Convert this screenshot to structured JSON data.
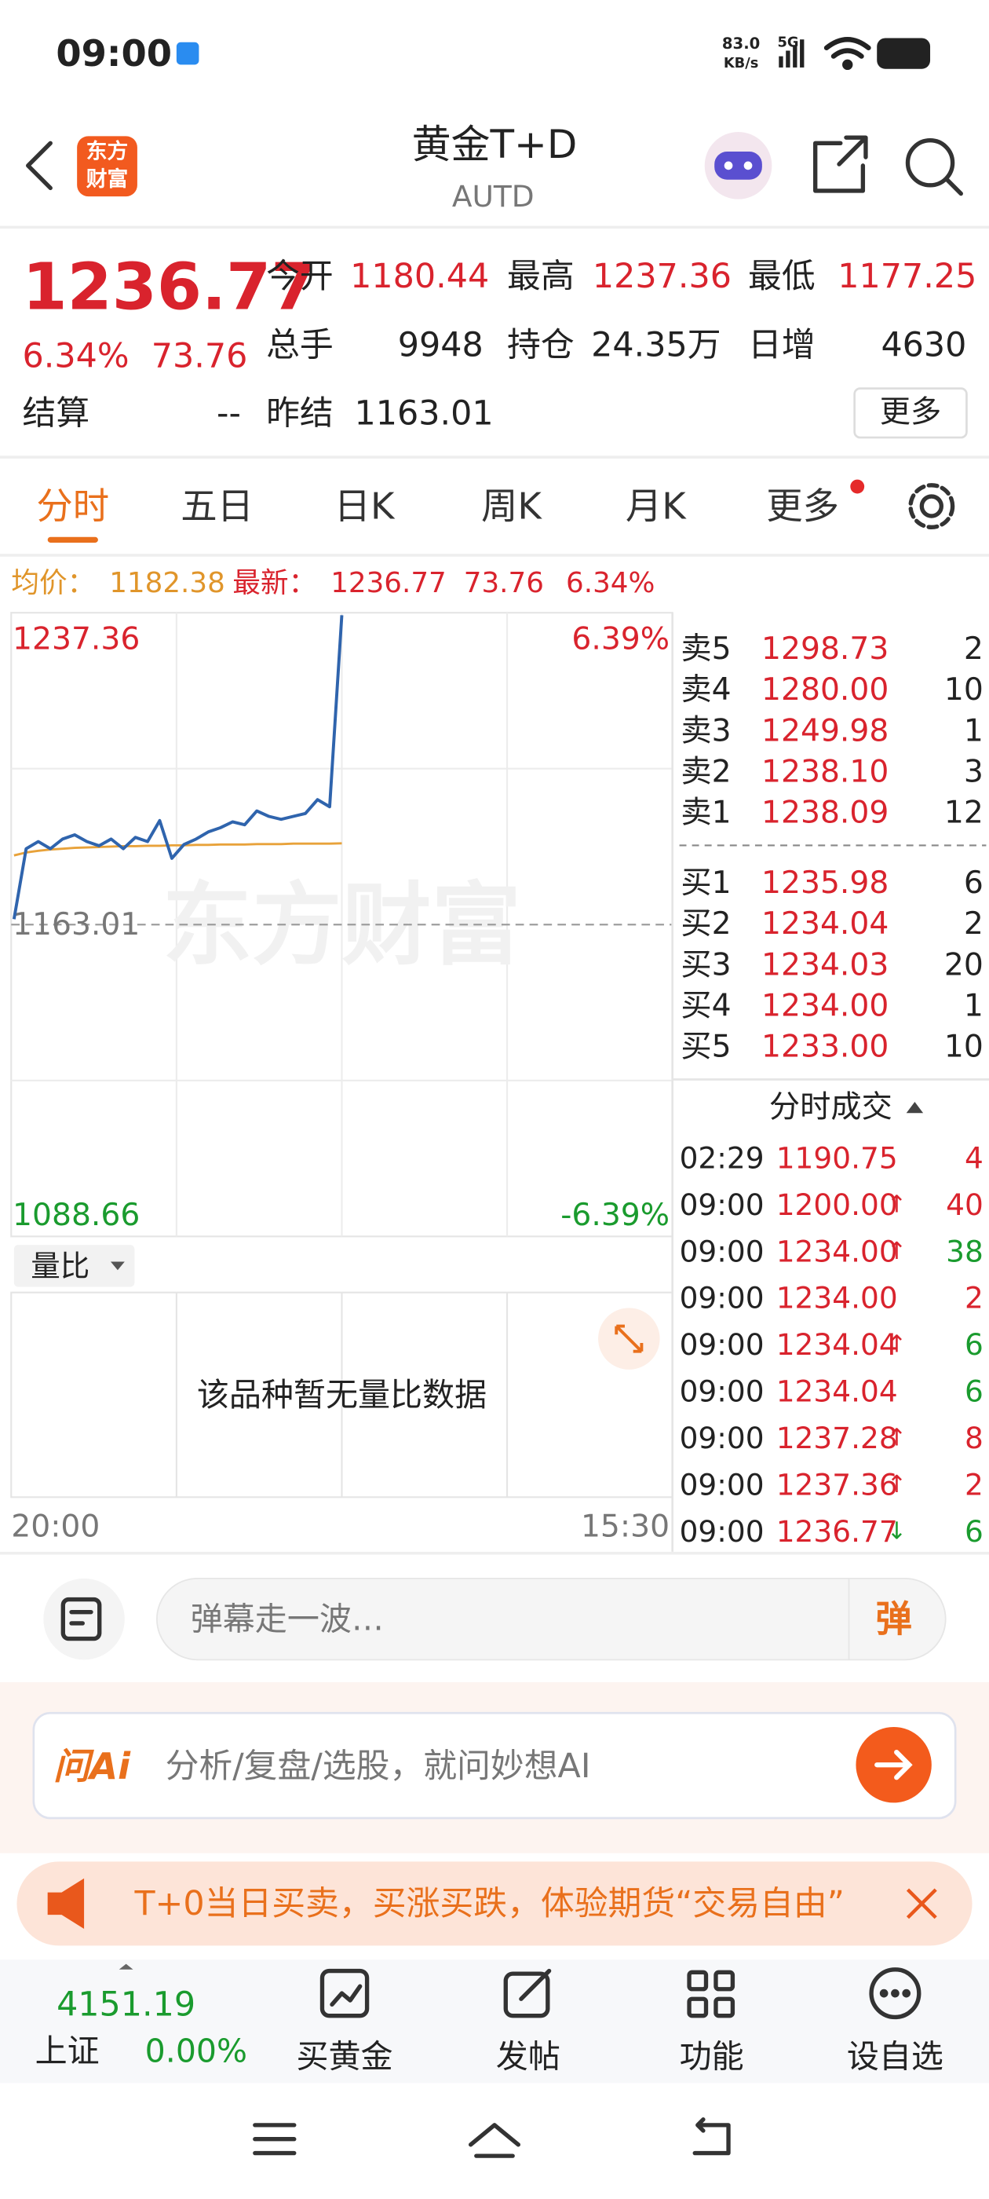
{
  "status_bar": {
    "time": "09:00",
    "net_speed": "83.0",
    "net_unit": "KB/s",
    "network": "5G"
  },
  "header": {
    "logo": [
      "东方",
      "财富"
    ],
    "title": "黄金T+D",
    "code": "AUTD"
  },
  "quote": {
    "price": "1236.77",
    "change_pct": "6.34%",
    "change": "73.76",
    "fields": [
      {
        "label": "今开",
        "value": "1180.44"
      },
      {
        "label": "最高",
        "value": "1237.36"
      },
      {
        "label": "最低",
        "value": "1177.25"
      },
      {
        "label": "总手",
        "value": "9948"
      },
      {
        "label": "持仓",
        "value": "24.35万"
      },
      {
        "label": "日增",
        "value": "4630"
      },
      {
        "label": "结算",
        "value": "--"
      },
      {
        "label": "昨结",
        "value": "1163.01"
      }
    ],
    "more": "更多"
  },
  "tabs": [
    "分时",
    "五日",
    "日K",
    "周K",
    "月K",
    "更多"
  ],
  "info": {
    "avg_label": "均价：",
    "avg": "1182.38",
    "latest_label": "最新：",
    "latest": "1236.77",
    "change": "73.76",
    "change_pct": "6.34%"
  },
  "chart_data": {
    "type": "line",
    "watermark": "东方财富",
    "series": [
      {
        "color": "#2f64ad",
        "values": [
          1164.3,
          1181.1,
          1182.8,
          1181.1,
          1183.4,
          1184.4,
          1182.8,
          1181.8,
          1183.4,
          1181.1,
          1183.8,
          1182.8,
          1187.8,
          1178.8,
          1182.1,
          1183.4,
          1185.1,
          1186.1,
          1187.5,
          1186.8,
          1190.1,
          1188.8,
          1188.1,
          1188.8,
          1189.5,
          1192.8,
          1191.1,
          1236.77
        ]
      },
      {
        "color": "#e8a23a",
        "values": [
          1179.5,
          1180.2,
          1180.6,
          1180.9,
          1181.1,
          1181.3,
          1181.4,
          1181.5,
          1181.6,
          1181.7,
          1181.7,
          1181.8,
          1181.8,
          1181.9,
          1181.9,
          1182.0,
          1182.0,
          1182.1,
          1182.1,
          1182.1,
          1182.2,
          1182.2,
          1182.2,
          1182.3,
          1182.3,
          1182.3,
          1182.3,
          1182.38
        ]
      }
    ],
    "ylim": [
      1088.66,
      1237.36
    ],
    "yticks": [
      1237.36,
      1163.01,
      1088.66
    ],
    "y2lim": [
      -6.39,
      6.39
    ],
    "y2ticks": [
      {
        "value": 6.39,
        "label": "6.39%"
      },
      {
        "value": -6.39,
        "label": "-6.39%"
      }
    ],
    "x_labels": [
      "20:00",
      "15:30"
    ]
  },
  "volume": {
    "selector": "量比",
    "empty": "该品种暂无量比数据"
  },
  "order_book": {
    "asks": [
      {
        "label": "卖5",
        "price": "1298.73",
        "volume": "2"
      },
      {
        "label": "卖4",
        "price": "1280.00",
        "volume": "10"
      },
      {
        "label": "卖3",
        "price": "1249.98",
        "volume": "1"
      },
      {
        "label": "卖2",
        "price": "1238.10",
        "volume": "3"
      },
      {
        "label": "卖1",
        "price": "1238.09",
        "volume": "12"
      }
    ],
    "bids": [
      {
        "label": "买1",
        "price": "1235.98",
        "volume": "6"
      },
      {
        "label": "买2",
        "price": "1234.04",
        "volume": "2"
      },
      {
        "label": "买3",
        "price": "1234.03",
        "volume": "20"
      },
      {
        "label": "买4",
        "price": "1234.00",
        "volume": "1"
      },
      {
        "label": "买5",
        "price": "1233.00",
        "volume": "10"
      }
    ]
  },
  "trades": {
    "title": "分时成交",
    "rows": [
      {
        "time": "02:29",
        "price": "1190.75",
        "volume": "4",
        "color": "#d9232d"
      },
      {
        "time": "09:00",
        "price": "1200.00",
        "arrow": "↑",
        "volume": "40",
        "color": "#d9232d"
      },
      {
        "time": "09:00",
        "price": "1234.00",
        "arrow": "↑",
        "volume": "38",
        "color": "#1a9b2e"
      },
      {
        "time": "09:00",
        "price": "1234.00",
        "volume": "2",
        "color": "#d9232d"
      },
      {
        "time": "09:00",
        "price": "1234.04",
        "arrow": "↑",
        "volume": "6",
        "color": "#1a9b2e"
      },
      {
        "time": "09:00",
        "price": "1234.04",
        "volume": "6",
        "color": "#1a9b2e"
      },
      {
        "time": "09:00",
        "price": "1237.28",
        "arrow": "↑",
        "volume": "8",
        "color": "#d9232d"
      },
      {
        "time": "09:00",
        "price": "1237.36",
        "arrow": "↑",
        "volume": "2",
        "color": "#d9232d"
      },
      {
        "time": "09:00",
        "price": "1236.77",
        "arrow": "↓",
        "volume": "6",
        "color": "#1a9b2e"
      }
    ]
  },
  "comment": {
    "placeholder": "弹幕走一波…",
    "button": "弹"
  },
  "ai": {
    "logo": "问Ai",
    "placeholder": "分析/复盘/选股，就问妙想AI"
  },
  "banner": {
    "text": "T+0当日买卖，买涨买跌，体验期货“交易自由”"
  },
  "bottom_nav": {
    "index": {
      "value": "4151.19",
      "name": "上证",
      "change": "0.00%"
    },
    "items": [
      "买黄金",
      "发帖",
      "功能",
      "设自选"
    ]
  }
}
